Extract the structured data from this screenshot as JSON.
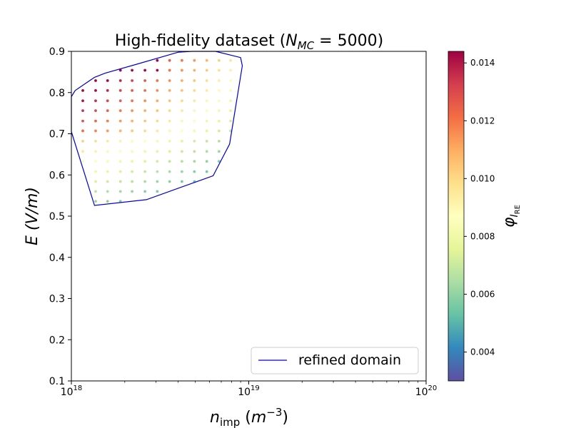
{
  "chart_data": {
    "type": "scatter",
    "title": "High-fidelity dataset (N_MC = 5000)",
    "title_parts": {
      "prefix": "High-fidelity dataset (",
      "n": "N",
      "n_sub": "MC",
      "eq": " = 5000)"
    },
    "xlabel": "n_imp (m^-3)",
    "xlabel_parts": {
      "n": "n",
      "sub": "imp",
      "unit_open": " (",
      "m": "m",
      "sup": "−3",
      "unit_close": ")"
    },
    "ylabel": "E (V/m)",
    "xscale": "log",
    "xlim": [
      1e+18,
      1e+20
    ],
    "ylim": [
      0.1,
      0.9
    ],
    "xticks": [
      {
        "value": 1e+18,
        "base": "10",
        "exp": "18"
      },
      {
        "value": 1e+19,
        "base": "10",
        "exp": "19"
      },
      {
        "value": 1e+20,
        "base": "10",
        "exp": "20"
      }
    ],
    "yticks": [
      "0.1",
      "0.2",
      "0.3",
      "0.4",
      "0.5",
      "0.6",
      "0.7",
      "0.8",
      "0.9"
    ],
    "colorbar": {
      "label": "φ_I_RE",
      "label_parts": {
        "phi": "φ",
        "sub1": "I",
        "sub2": "RE"
      },
      "colormap": "Spectral_r",
      "vmin": 0.003,
      "vmax": 0.0144,
      "ticks": [
        "0.004",
        "0.006",
        "0.008",
        "0.010",
        "0.012",
        "0.014"
      ]
    },
    "legend": {
      "entries": [
        "refined domain"
      ],
      "location": "lower-right",
      "line_color": "#0000cd"
    },
    "domain_polygon": [
      [
        1e+18,
        0.79
      ],
      [
        1.05e+18,
        0.805
      ],
      [
        1.35e+18,
        0.837
      ],
      [
        1.55e+18,
        0.847
      ],
      [
        2.3e+18,
        0.868
      ],
      [
        4e+18,
        0.898
      ],
      [
        4.8e+18,
        0.9
      ],
      [
        6.5e+18,
        0.9
      ],
      [
        9e+18,
        0.885
      ],
      [
        9.2e+18,
        0.865
      ],
      [
        7.8e+18,
        0.675
      ],
      [
        6.3e+18,
        0.598
      ],
      [
        2.65e+18,
        0.54
      ],
      [
        1.35e+18,
        0.526
      ],
      [
        1e+18,
        0.705
      ]
    ],
    "grid_x": [
      1.16e+18,
      1.37e+18,
      1.6e+18,
      1.89e+18,
      2.2e+18,
      2.6e+18,
      3.05e+18,
      3.58e+18,
      4.2e+18,
      4.94e+18,
      5.8e+18,
      6.8e+18,
      7.9e+18
    ],
    "grid_y": [
      0.536,
      0.56,
      0.584,
      0.608,
      0.633,
      0.657,
      0.682,
      0.707,
      0.731,
      0.756,
      0.78,
      0.805,
      0.829,
      0.854,
      0.878
    ],
    "points_note": "Each row of point_values lists φ values for grid_x columns at the corresponding grid_y row; null means no sample."
  }
}
